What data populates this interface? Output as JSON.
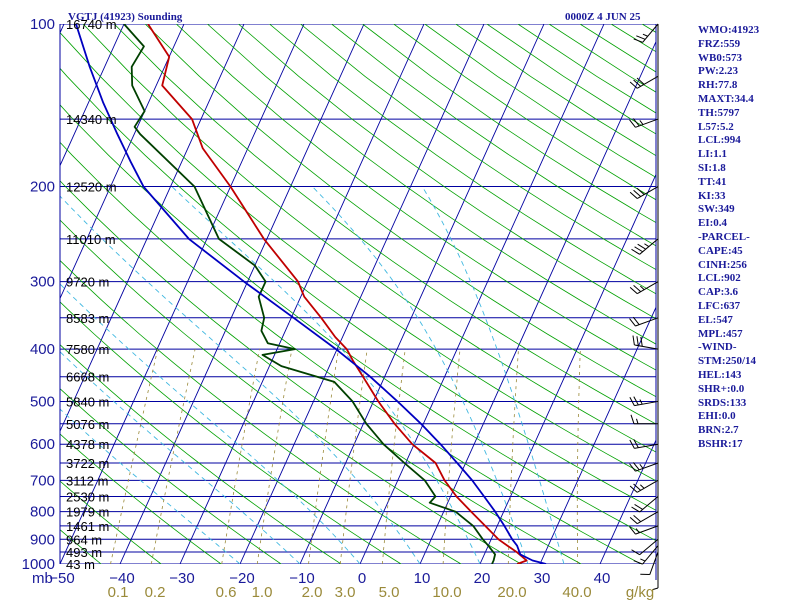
{
  "header": {
    "station": "VGTJ (41923) Sounding",
    "time": "0000Z  4 JUN 25"
  },
  "colors": {
    "isobar": "#0000a0",
    "isotherm": "#0000a0",
    "dry_adiabat": "#00a000",
    "moist_adiabat": "#40b8e0",
    "mixing_ratio": "#9a8a3a",
    "temperature": "#c00000",
    "dewpoint": "#004000",
    "parcel": "#0000c0",
    "label": "#1a1a9a"
  },
  "chart_data": {
    "type": "line",
    "title": "VGTJ (41923) Sounding",
    "xlabel": "",
    "ylabel": "mb",
    "y_scale": "log",
    "pressure_levels": [
      100,
      200,
      300,
      400,
      500,
      600,
      700,
      800,
      900,
      1000
    ],
    "x_ticks": [
      -50,
      -40,
      -30,
      -20,
      -10,
      0,
      10,
      20,
      30,
      40
    ],
    "xlim": [
      -50,
      50
    ],
    "ylim": [
      1000,
      100
    ],
    "heights": [
      {
        "p": 100,
        "label": "16740 m"
      },
      {
        "p": 150,
        "label": "14340 m"
      },
      {
        "p": 200,
        "label": "12520 m"
      },
      {
        "p": 250,
        "label": "11010 m"
      },
      {
        "p": 300,
        "label": "9720 m"
      },
      {
        "p": 350,
        "label": "8583 m"
      },
      {
        "p": 400,
        "label": "7580 m"
      },
      {
        "p": 450,
        "label": "6668 m"
      },
      {
        "p": 500,
        "label": "5840 m"
      },
      {
        "p": 550,
        "label": "5076 m"
      },
      {
        "p": 600,
        "label": "4378 m"
      },
      {
        "p": 650,
        "label": "3722 m"
      },
      {
        "p": 700,
        "label": "3112 m"
      },
      {
        "p": 750,
        "label": "2530 m"
      },
      {
        "p": 800,
        "label": "1979 m"
      },
      {
        "p": 850,
        "label": "1461 m"
      },
      {
        "p": 900,
        "label": "964 m"
      },
      {
        "p": 950,
        "label": "493 m"
      },
      {
        "p": 1000,
        "label": "43 m"
      }
    ],
    "mixing_ratio_labels": [
      "0.1",
      "0.2",
      "0.6",
      "1.0",
      "2.0",
      "3.0",
      "5.0",
      "10.0",
      "20.0",
      "40.0",
      "g/kg"
    ],
    "series": [
      {
        "name": "temperature",
        "points": [
          [
            1000,
            26.2
          ],
          [
            985,
            27.5
          ],
          [
            950,
            25.2
          ],
          [
            925,
            23.2
          ],
          [
            900,
            21.2
          ],
          [
            850,
            18.0
          ],
          [
            800,
            14.6
          ],
          [
            750,
            11.0
          ],
          [
            700,
            7.8
          ],
          [
            650,
            5.0
          ],
          [
            600,
            -0.3
          ],
          [
            550,
            -4.8
          ],
          [
            500,
            -9.2
          ],
          [
            450,
            -13.6
          ],
          [
            420,
            -16.5
          ],
          [
            400,
            -18.4
          ],
          [
            380,
            -21.2
          ],
          [
            350,
            -25.0
          ],
          [
            320,
            -29.4
          ],
          [
            300,
            -31.6
          ],
          [
            250,
            -40.5
          ],
          [
            200,
            -50.0
          ],
          [
            170,
            -57.5
          ],
          [
            150,
            -61.5
          ],
          [
            130,
            -69.0
          ],
          [
            115,
            -70.0
          ],
          [
            100,
            -76.0
          ]
        ]
      },
      {
        "name": "dewpoint",
        "points": [
          [
            1000,
            22.0
          ],
          [
            985,
            22.0
          ],
          [
            960,
            21.8
          ],
          [
            925,
            20.0
          ],
          [
            900,
            18.6
          ],
          [
            850,
            16.0
          ],
          [
            800,
            12.0
          ],
          [
            770,
            7.0
          ],
          [
            750,
            7.5
          ],
          [
            700,
            4.5
          ],
          [
            650,
            -0.2
          ],
          [
            600,
            -5.1
          ],
          [
            550,
            -9.5
          ],
          [
            500,
            -13.5
          ],
          [
            460,
            -18.0
          ],
          [
            430,
            -28.0
          ],
          [
            410,
            -32.0
          ],
          [
            400,
            -27.0
          ],
          [
            390,
            -32.0
          ],
          [
            370,
            -34.0
          ],
          [
            350,
            -34.5
          ],
          [
            320,
            -37.0
          ],
          [
            300,
            -37.0
          ],
          [
            280,
            -40.0
          ],
          [
            250,
            -48.0
          ],
          [
            200,
            -56.0
          ],
          [
            160,
            -69.0
          ],
          [
            155,
            -70.5
          ],
          [
            145,
            -70.0
          ],
          [
            130,
            -74.0
          ],
          [
            120,
            -75.5
          ],
          [
            110,
            -75.0
          ],
          [
            100,
            -80.0
          ]
        ]
      },
      {
        "name": "parcel",
        "points": [
          [
            1000,
            31.0
          ],
          [
            985,
            28.5
          ],
          [
            960,
            26.0
          ],
          [
            925,
            24.8
          ],
          [
            900,
            23.5
          ],
          [
            850,
            21.2
          ],
          [
            800,
            18.6
          ],
          [
            750,
            15.6
          ],
          [
            700,
            12.4
          ],
          [
            650,
            8.6
          ],
          [
            600,
            4.4
          ],
          [
            550,
            -0.4
          ],
          [
            500,
            -6.0
          ],
          [
            450,
            -12.4
          ],
          [
            400,
            -20.2
          ],
          [
            350,
            -29.6
          ],
          [
            300,
            -40.6
          ],
          [
            250,
            -53.0
          ],
          [
            200,
            -64.5
          ],
          [
            180,
            -68.5
          ],
          [
            160,
            -72.8
          ],
          [
            140,
            -77.5
          ],
          [
            120,
            -82.5
          ],
          [
            100,
            -88.0
          ]
        ]
      }
    ],
    "wind_barbs": [
      {
        "p": 1000,
        "dir": 180,
        "kt": 5
      },
      {
        "p": 950,
        "dir": 200,
        "kt": 10
      },
      {
        "p": 925,
        "dir": 220,
        "kt": 15
      },
      {
        "p": 900,
        "dir": 230,
        "kt": 10
      },
      {
        "p": 850,
        "dir": 250,
        "kt": 15
      },
      {
        "p": 800,
        "dir": 240,
        "kt": 20
      },
      {
        "p": 750,
        "dir": 230,
        "kt": 20
      },
      {
        "p": 700,
        "dir": 240,
        "kt": 25
      },
      {
        "p": 650,
        "dir": 250,
        "kt": 25
      },
      {
        "p": 600,
        "dir": 260,
        "kt": 20
      },
      {
        "p": 550,
        "dir": 270,
        "kt": 15
      },
      {
        "p": 500,
        "dir": 260,
        "kt": 25
      },
      {
        "p": 400,
        "dir": 280,
        "kt": 30
      },
      {
        "p": 350,
        "dir": 250,
        "kt": 20
      },
      {
        "p": 300,
        "dir": 240,
        "kt": 25
      },
      {
        "p": 250,
        "dir": 230,
        "kt": 35
      },
      {
        "p": 200,
        "dir": 240,
        "kt": 30
      },
      {
        "p": 150,
        "dir": 250,
        "kt": 25
      },
      {
        "p": 125,
        "dir": 240,
        "kt": 30
      },
      {
        "p": 100,
        "dir": 220,
        "kt": 25
      }
    ]
  },
  "stats": [
    "WMO:41923",
    "FRZ:559",
    "WB0:573",
    "PW:2.23",
    "RH:77.8",
    "MAXT:34.4",
    "TH:5797",
    "L57:5.2",
    "LCL:994",
    "LI:1.1",
    "SI:1.8",
    "TT:41",
    "KI:33",
    "SW:349",
    "EI:0.4",
    "-PARCEL-",
    "CAPE:45",
    "CINH:256",
    "LCL:902",
    "CAP:3.6",
    "LFC:637",
    "EL:547",
    "MPL:457",
    "-WIND-",
    "STM:250/14",
    "HEL:143",
    "SHR+:0.0",
    "SRDS:133",
    "EHI:0.0",
    "BRN:2.7",
    "BSHR:17"
  ]
}
